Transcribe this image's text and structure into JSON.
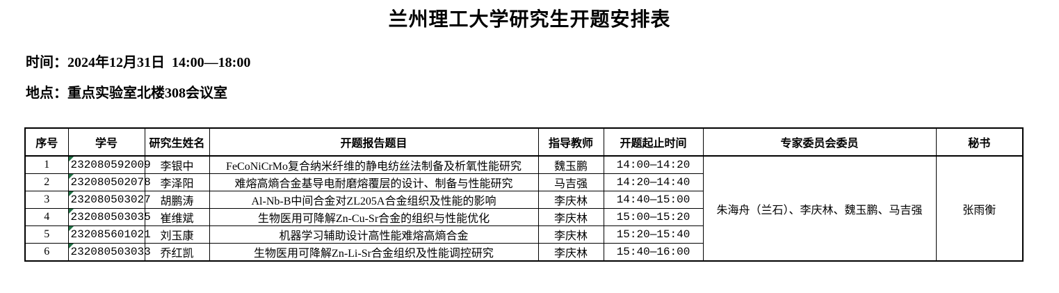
{
  "page": {
    "title": "兰州理工大学研究生开题安排表",
    "time_label": "时间：",
    "time_value": "2024年12月31日  14:00—18:00",
    "location_label": "地点：",
    "location_value": "重点实验室北楼308会议室"
  },
  "table": {
    "headers": [
      "序号",
      "学号",
      "研究生姓名",
      "开题报告题目",
      "指导教师",
      "开题起止时间",
      "专家委员会委员",
      "秘书"
    ],
    "rows": [
      {
        "no": "1",
        "student_id": "232080592009",
        "name": "李银中",
        "title": "FeCoNiCrMo复合纳米纤维的静电纺丝法制备及析氧性能研究",
        "advisor": "魏玉鹏",
        "time": "14:00—14:20"
      },
      {
        "no": "2",
        "student_id": "232080502078",
        "name": "李泽阳",
        "title": "难熔高熵合金基导电耐磨熔覆层的设计、制备与性能研究",
        "advisor": "马吉强",
        "time": "14:20—14:40"
      },
      {
        "no": "3",
        "student_id": "232080503027",
        "name": "胡鹏涛",
        "title": "Al-Nb-B中间合金对ZL205A合金组织及性能的影响",
        "advisor": "李庆林",
        "time": "14:40—15:00"
      },
      {
        "no": "4",
        "student_id": "232080503035",
        "name": "崔维斌",
        "title": "生物医用可降解Zn-Cu-Sr合金的组织与性能优化",
        "advisor": "李庆林",
        "time": "15:00—15:20"
      },
      {
        "no": "5",
        "student_id": "232085601021",
        "name": "刘玉康",
        "title": "机器学习辅助设计高性能难熔高熵合金",
        "advisor": "李庆林",
        "time": "15:20—15:40"
      },
      {
        "no": "6",
        "student_id": "232080503033",
        "name": "乔红凯",
        "title": "生物医用可降解Zn-Li-Sr合金组织及性能调控研究",
        "advisor": "李庆林",
        "time": "15:40—16:00"
      }
    ],
    "committee": "朱海舟（兰石）、李庆林、魏玉鹏、马吉强",
    "secretary": "张雨衡",
    "indicator_color": "#217346"
  }
}
